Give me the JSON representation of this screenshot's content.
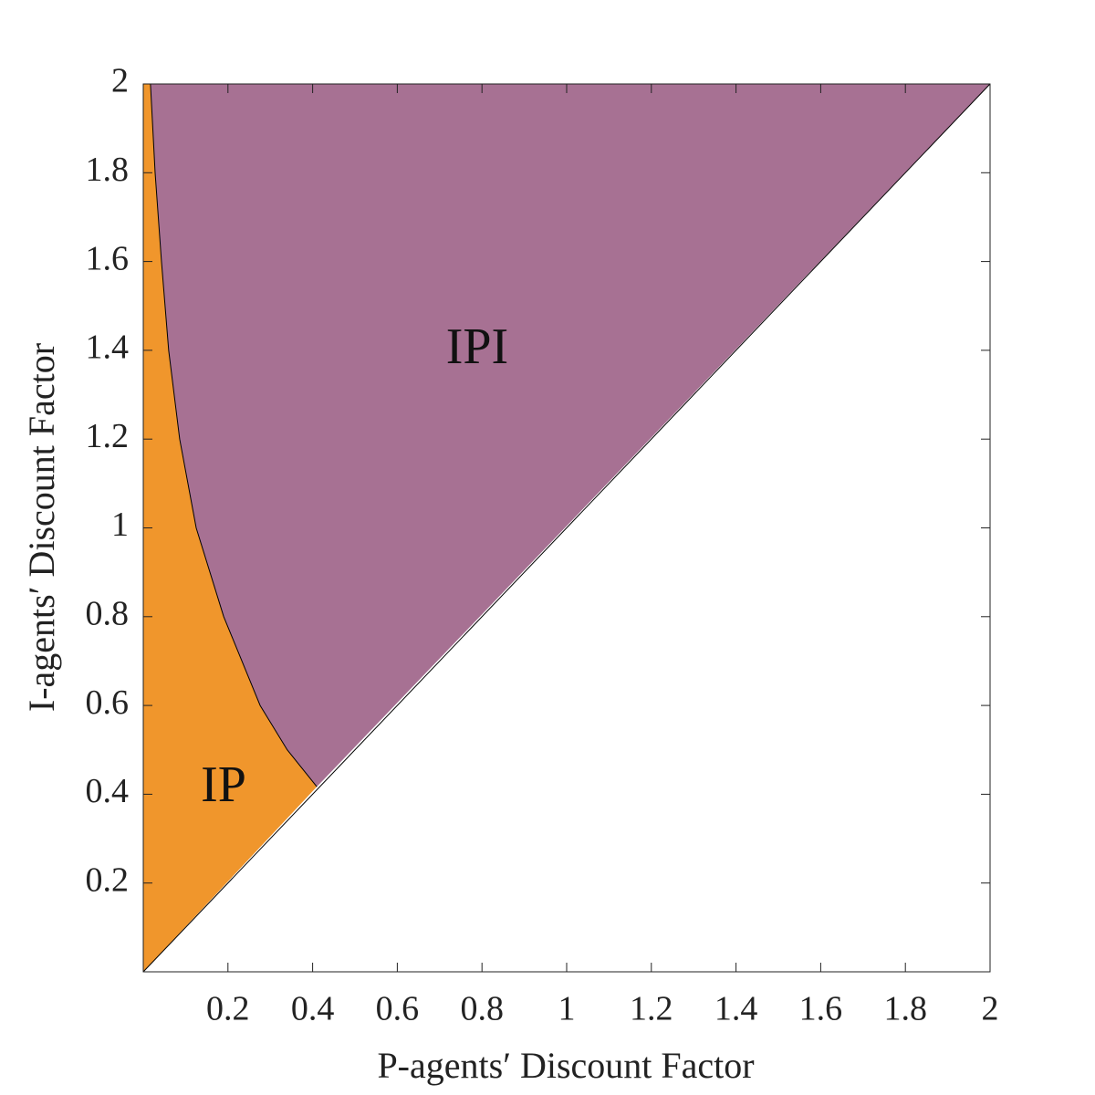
{
  "chart_data": {
    "type": "region",
    "xlabel": "P-agents′ Discount Factor",
    "ylabel": "I-agents′ Discount Factor",
    "xlim": [
      0,
      2
    ],
    "ylim": [
      0,
      2
    ],
    "xticks": [
      0.2,
      0.4,
      0.6,
      0.8,
      1,
      1.2,
      1.4,
      1.6,
      1.8,
      2
    ],
    "yticks": [
      0.2,
      0.4,
      0.6,
      0.8,
      1,
      1.2,
      1.4,
      1.6,
      1.8,
      2
    ],
    "boundary": {
      "x": [
        0.41,
        0.34,
        0.276,
        0.19,
        0.125,
        0.086,
        0.06,
        0.043,
        0.028,
        0.017
      ],
      "y": [
        0.417,
        0.5,
        0.6,
        0.8,
        1,
        1.2,
        1.4,
        1.6,
        1.8,
        2
      ]
    },
    "regions": [
      {
        "name": "IP",
        "color": "#f0962c"
      },
      {
        "name": "IPI",
        "color": "#a77193"
      }
    ]
  }
}
